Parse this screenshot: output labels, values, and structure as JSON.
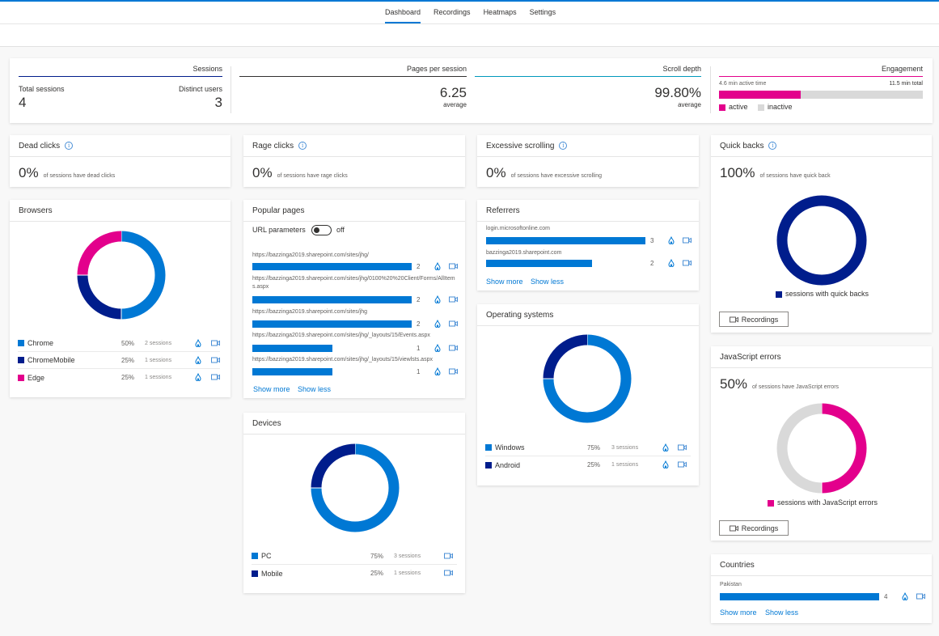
{
  "nav": {
    "tabs": [
      {
        "label": "Dashboard",
        "active": true
      },
      {
        "label": "Recordings",
        "active": false
      },
      {
        "label": "Heatmaps",
        "active": false
      },
      {
        "label": "Settings",
        "active": false
      }
    ]
  },
  "summary": {
    "sessions": {
      "title": "Sessions",
      "total_label": "Total sessions",
      "total_value": "4",
      "distinct_label": "Distinct users",
      "distinct_value": "3"
    },
    "pages": {
      "title": "Pages per session",
      "value": "6.25",
      "sub": "average"
    },
    "scroll": {
      "title": "Scroll depth",
      "value": "99.80%",
      "sub": "average"
    },
    "engagement": {
      "title": "Engagement",
      "active_text": "4.6 min active time",
      "total_text": "11.5 min total",
      "active_minutes": 4.6,
      "total_minutes": 11.5,
      "legend_active": "active",
      "legend_inactive": "inactive"
    }
  },
  "metrics": {
    "dead_clicks": {
      "title": "Dead clicks",
      "value": "0%",
      "sub": "of sessions have dead clicks"
    },
    "rage_clicks": {
      "title": "Rage clicks",
      "value": "0%",
      "sub": "of sessions have rage clicks"
    },
    "excessive_scrolling": {
      "title": "Excessive scrolling",
      "value": "0%",
      "sub": "of sessions have excessive scrolling"
    },
    "quick_backs": {
      "title": "Quick backs",
      "value": "100%",
      "sub": "of sessions have quick back",
      "legend": "sessions with quick backs",
      "button": "Recordings"
    }
  },
  "browsers": {
    "title": "Browsers",
    "items": [
      {
        "name": "Chrome",
        "pct": "50%",
        "sessions": "2 sessions",
        "value": 50,
        "color": "#0078d4"
      },
      {
        "name": "ChromeMobile",
        "pct": "25%",
        "sessions": "1 sessions",
        "value": 25,
        "color": "#001d8c"
      },
      {
        "name": "Edge",
        "pct": "25%",
        "sessions": "1 sessions",
        "value": 25,
        "color": "#e3008c"
      }
    ]
  },
  "popular_pages": {
    "title": "Popular pages",
    "toggle_label": "URL parameters",
    "toggle_state": "off",
    "items": [
      {
        "url": "https://bazzinga2019.sharepoint.com/sites/jhg/",
        "count": 2
      },
      {
        "url": "https://bazzinga2019.sharepoint.com/sites/jhg/0100%20%20Client/Forms/AllItems.aspx",
        "count": 2
      },
      {
        "url": "https://bazzinga2019.sharepoint.com/sites/jhg",
        "count": 2
      },
      {
        "url": "https://bazzinga2019.sharepoint.com/sites/jhg/_layouts/15/Events.aspx",
        "count": 1
      },
      {
        "url": "https://bazzinga2019.sharepoint.com/sites/jhg/_layouts/15/viewlsts.aspx",
        "count": 1
      }
    ],
    "show_more": "Show more",
    "show_less": "Show less"
  },
  "referrers": {
    "title": "Referrers",
    "items": [
      {
        "name": "login.microsoftonline.com",
        "count": 3
      },
      {
        "name": "bazzinga2019.sharepoint.com",
        "count": 2
      }
    ],
    "show_more": "Show more",
    "show_less": "Show less"
  },
  "operating_systems": {
    "title": "Operating systems",
    "items": [
      {
        "name": "Windows",
        "pct": "75%",
        "sessions": "3 sessions",
        "value": 75,
        "color": "#0078d4"
      },
      {
        "name": "Android",
        "pct": "25%",
        "sessions": "1 sessions",
        "value": 25,
        "color": "#001d8c"
      }
    ]
  },
  "devices": {
    "title": "Devices",
    "items": [
      {
        "name": "PC",
        "pct": "75%",
        "sessions": "3 sessions",
        "value": 75,
        "color": "#0078d4"
      },
      {
        "name": "Mobile",
        "pct": "25%",
        "sessions": "1 sessions",
        "value": 25,
        "color": "#001d8c"
      }
    ]
  },
  "js_errors": {
    "title": "JavaScript errors",
    "value": "50%",
    "sub": "of sessions have JavaScript errors",
    "legend": "sessions with JavaScript errors",
    "button": "Recordings",
    "error_pct": 50
  },
  "countries": {
    "title": "Countries",
    "items": [
      {
        "name": "Pakistan",
        "count": 4
      }
    ],
    "show_more": "Show more",
    "show_less": "Show less"
  },
  "colors": {
    "primary": "#0078d4",
    "dark": "#001d8c",
    "magenta": "#e3008c",
    "gray": "#d9d9d9",
    "teal": "#0099bc"
  }
}
